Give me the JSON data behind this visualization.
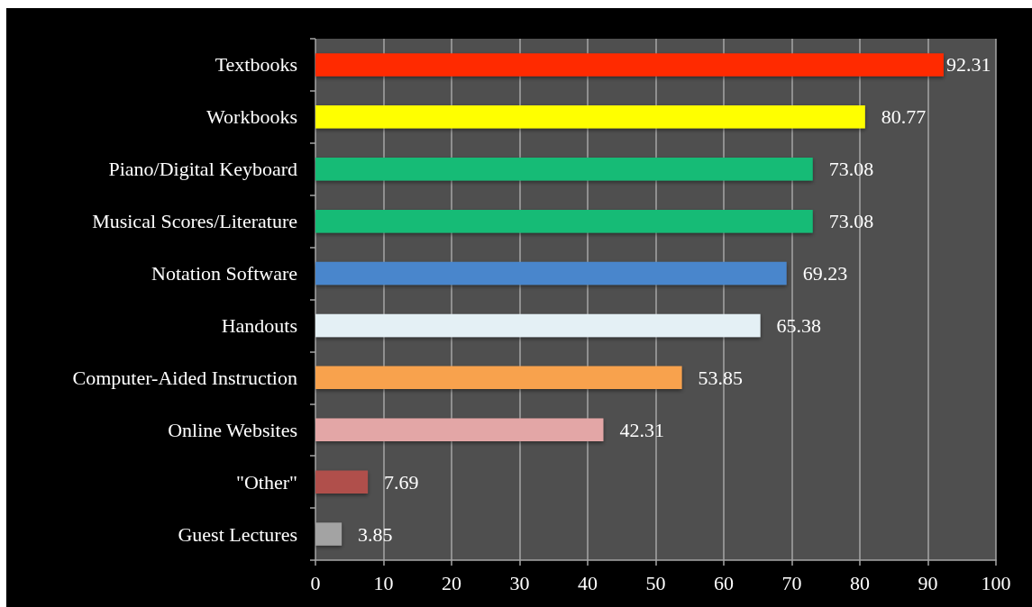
{
  "chart_data": {
    "type": "bar",
    "orientation": "horizontal",
    "categories": [
      "Textbooks",
      "Workbooks",
      "Piano/Digital Keyboard",
      "Musical Scores/Literature",
      "Notation Software",
      "Handouts",
      "Computer-Aided Instruction",
      "Online Websites",
      "\"Other\"",
      "Guest Lectures"
    ],
    "values": [
      92.31,
      80.77,
      73.08,
      73.08,
      69.23,
      65.38,
      53.85,
      42.31,
      7.69,
      3.85
    ],
    "colors": [
      "#ff2a00",
      "#ffff00",
      "#12bb76",
      "#12bb76",
      "#4a86cc",
      "#e4f0f5",
      "#f8a24e",
      "#e3a6a6",
      "#b0504b",
      "#a3a3a3"
    ],
    "xlim": [
      0,
      100
    ],
    "xticks": [
      0,
      10,
      20,
      30,
      40,
      50,
      60,
      70,
      80,
      90,
      100
    ],
    "grid": "x",
    "data_labels": true
  }
}
